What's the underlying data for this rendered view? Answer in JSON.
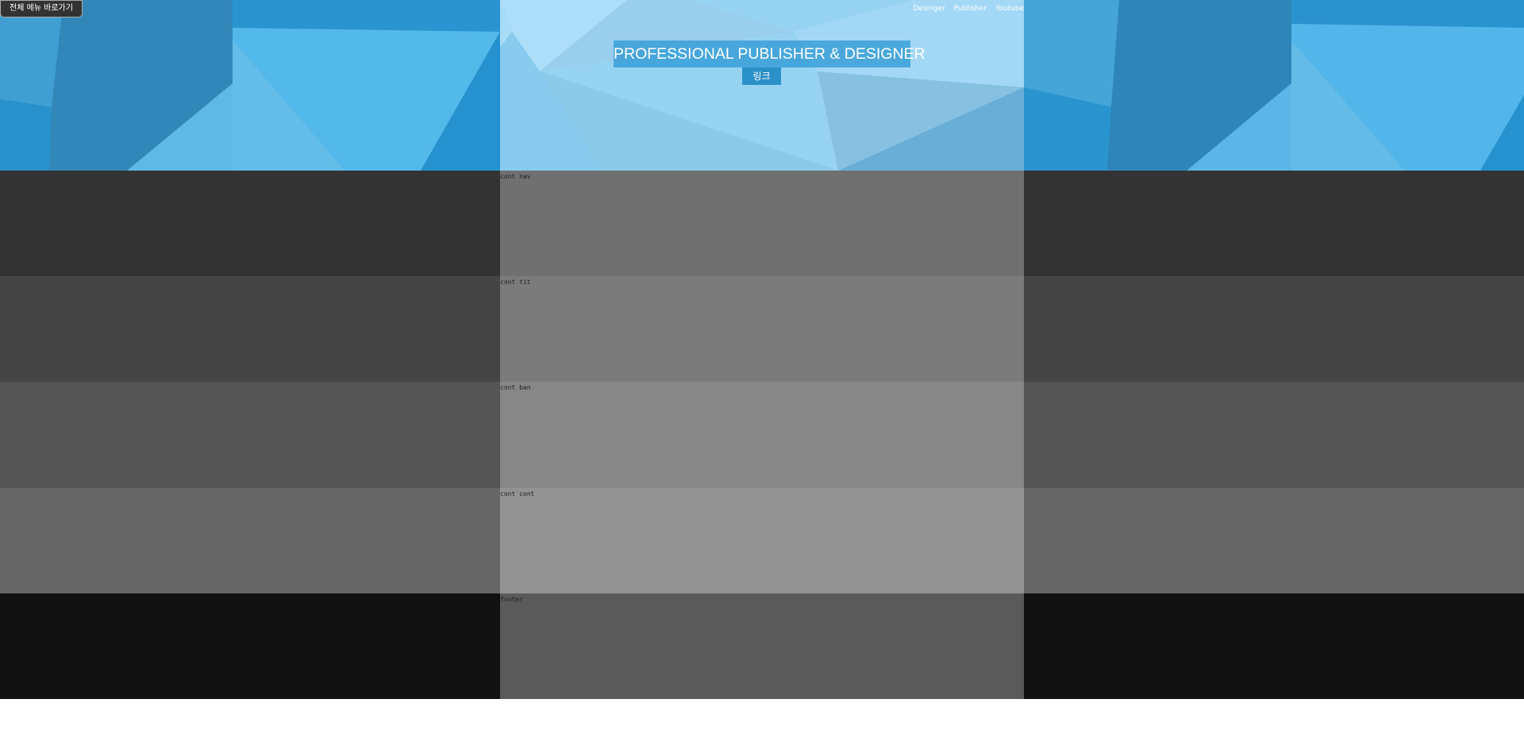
{
  "skip_link": "전체 메뉴 바로가기",
  "header": {
    "nav": [
      "Desinger",
      "Publisher",
      "Youtube"
    ],
    "title": "PROFESSIONAL PUBLISHER & DESIGNER",
    "link_label": "링크"
  },
  "sections": [
    {
      "label": "cont nav",
      "side_color": "#333333",
      "center_color": "#707070"
    },
    {
      "label": "cont tit",
      "side_color": "#444444",
      "center_color": "#7b7b7b"
    },
    {
      "label": "cont ban",
      "side_color": "#555555",
      "center_color": "#878787"
    },
    {
      "label": "cont cont",
      "side_color": "#666666",
      "center_color": "#939393"
    },
    {
      "label": "footer",
      "side_color": "#111111",
      "center_color": "#5a5a5a"
    }
  ]
}
